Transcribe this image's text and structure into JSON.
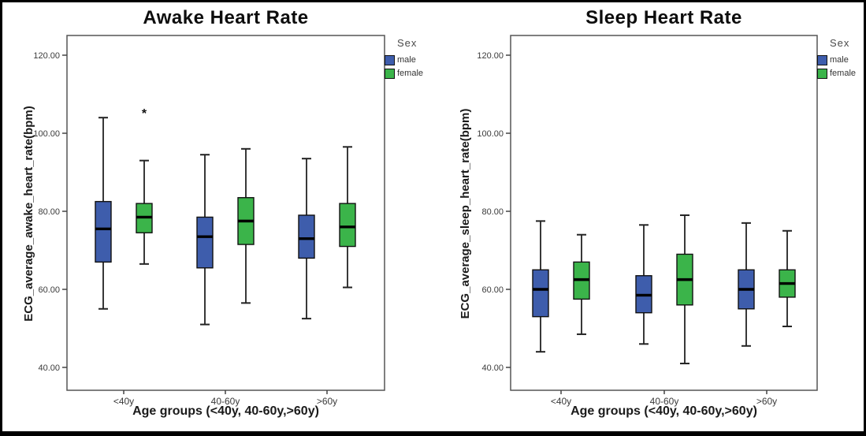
{
  "figure": {
    "outlier_symbol": "*",
    "colors": {
      "male": "#3e5dac",
      "female": "#3bb44a",
      "frame": "#555555",
      "box_stroke": "#111111",
      "whisker": "#222222",
      "tick_text": "#3a3a3a"
    }
  },
  "chart_data": [
    {
      "type": "boxplot",
      "title": "Awake Heart Rate",
      "xlabel": "Age groups (<40y, 40-60y,>60y)",
      "ylabel": "ECG_average_awake_heart_rate(bpm)",
      "ylim": [
        34,
        125
      ],
      "yticks": [
        40,
        60,
        80,
        100,
        120
      ],
      "ytick_labels": [
        "40.00",
        "60.00",
        "80.00",
        "100.00",
        "120.00"
      ],
      "categories": [
        "<40y",
        "40-60y",
        ">60y"
      ],
      "grid": false,
      "legend": {
        "title": "Sex",
        "position": "top-right-outside",
        "entries": [
          {
            "label": "male",
            "color": "#3e5dac"
          },
          {
            "label": "female",
            "color": "#3bb44a"
          }
        ]
      },
      "series": [
        {
          "name": "male",
          "color": "#3e5dac",
          "boxes": [
            {
              "category": "<40y",
              "whisker_low": 55,
              "q1": 67,
              "median": 75.5,
              "q3": 82.5,
              "whisker_high": 104,
              "extreme_outliers": []
            },
            {
              "category": "40-60y",
              "whisker_low": 51,
              "q1": 65.5,
              "median": 73.5,
              "q3": 78.5,
              "whisker_high": 94.5,
              "extreme_outliers": []
            },
            {
              "category": ">60y",
              "whisker_low": 52.5,
              "q1": 68,
              "median": 73,
              "q3": 79,
              "whisker_high": 93.5,
              "extreme_outliers": []
            }
          ]
        },
        {
          "name": "female",
          "color": "#3bb44a",
          "boxes": [
            {
              "category": "<40y",
              "whisker_low": 66.5,
              "q1": 74.5,
              "median": 78.5,
              "q3": 82,
              "whisker_high": 93,
              "extreme_outliers": [
                105.5
              ]
            },
            {
              "category": "40-60y",
              "whisker_low": 56.5,
              "q1": 71.5,
              "median": 77.5,
              "q3": 83.5,
              "whisker_high": 96,
              "extreme_outliers": []
            },
            {
              "category": ">60y",
              "whisker_low": 60.5,
              "q1": 71,
              "median": 76,
              "q3": 82,
              "whisker_high": 96.5,
              "extreme_outliers": []
            }
          ]
        }
      ]
    },
    {
      "type": "boxplot",
      "title": "Sleep Heart Rate",
      "xlabel": "Age groups (<40y, 40-60y,>60y)",
      "ylabel": "ECG_average_sleep_heart_rate(bpm)",
      "ylim": [
        34,
        125
      ],
      "yticks": [
        40,
        60,
        80,
        100,
        120
      ],
      "ytick_labels": [
        "40.00",
        "60.00",
        "80.00",
        "100.00",
        "120.00"
      ],
      "categories": [
        "<40y",
        "40-60y",
        ">60y"
      ],
      "grid": false,
      "legend": {
        "title": "Sex",
        "position": "top-right-outside",
        "entries": [
          {
            "label": "male",
            "color": "#3e5dac"
          },
          {
            "label": "female",
            "color": "#3bb44a"
          }
        ]
      },
      "series": [
        {
          "name": "male",
          "color": "#3e5dac",
          "boxes": [
            {
              "category": "<40y",
              "whisker_low": 44,
              "q1": 53,
              "median": 60,
              "q3": 65,
              "whisker_high": 77.5,
              "extreme_outliers": []
            },
            {
              "category": "40-60y",
              "whisker_low": 46,
              "q1": 54,
              "median": 58.5,
              "q3": 63.5,
              "whisker_high": 76.5,
              "extreme_outliers": []
            },
            {
              "category": ">60y",
              "whisker_low": 45.5,
              "q1": 55,
              "median": 60,
              "q3": 65,
              "whisker_high": 77,
              "extreme_outliers": []
            }
          ]
        },
        {
          "name": "female",
          "color": "#3bb44a",
          "boxes": [
            {
              "category": "<40y",
              "whisker_low": 48.5,
              "q1": 57.5,
              "median": 62.5,
              "q3": 67,
              "whisker_high": 74,
              "extreme_outliers": []
            },
            {
              "category": "40-60y",
              "whisker_low": 41,
              "q1": 56,
              "median": 62.5,
              "q3": 69,
              "whisker_high": 79,
              "extreme_outliers": []
            },
            {
              "category": ">60y",
              "whisker_low": 50.5,
              "q1": 58,
              "median": 61.5,
              "q3": 65,
              "whisker_high": 75,
              "extreme_outliers": []
            }
          ]
        }
      ]
    }
  ]
}
